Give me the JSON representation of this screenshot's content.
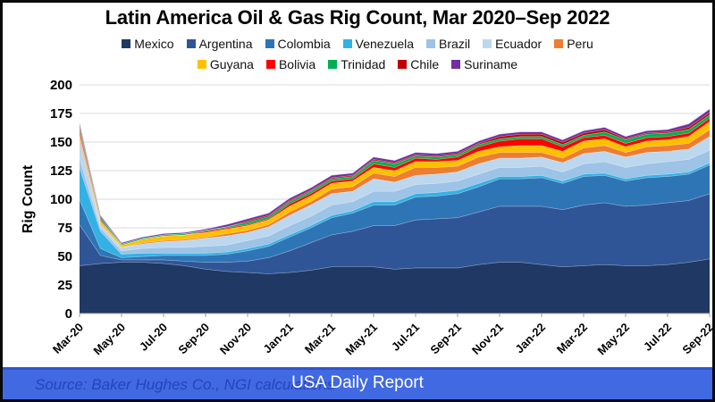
{
  "chart_data": {
    "type": "area",
    "stacked": true,
    "title": "Latin America Oil & Gas Rig Count, Mar 2020–Sep 2022",
    "ylabel": "Rig Count",
    "ylim": [
      0,
      200
    ],
    "ytick_step": 25,
    "grid": true,
    "legend_position": "top",
    "legend_row_break": 7,
    "x": [
      "Mar-20",
      "Apr-20",
      "May-20",
      "Jun-20",
      "Jul-20",
      "Aug-20",
      "Sep-20",
      "Oct-20",
      "Nov-20",
      "Dec-20",
      "Jan-21",
      "Feb-21",
      "Mar-21",
      "Apr-21",
      "May-21",
      "Jun-21",
      "Jul-21",
      "Aug-21",
      "Sep-21",
      "Oct-21",
      "Nov-21",
      "Dec-21",
      "Jan-22",
      "Feb-22",
      "Mar-22",
      "Apr-22",
      "May-22",
      "Jun-22",
      "Jul-22",
      "Aug-22",
      "Sep-22"
    ],
    "x_tick_every": 2,
    "series": [
      {
        "name": "Mexico",
        "color": "#1F3864",
        "values": [
          42,
          44,
          45,
          45,
          44,
          42,
          39,
          37,
          36,
          35,
          36,
          38,
          41,
          41,
          41,
          39,
          40,
          40,
          40,
          43,
          45,
          45,
          43,
          41,
          42,
          43,
          42,
          42,
          43,
          45,
          48
        ]
      },
      {
        "name": "Argentina",
        "color": "#2F5597",
        "values": [
          36,
          7,
          2,
          2,
          3,
          4,
          6,
          8,
          10,
          14,
          19,
          24,
          28,
          31,
          36,
          38,
          42,
          43,
          44,
          46,
          49,
          49,
          51,
          50,
          53,
          54,
          52,
          53,
          54,
          54,
          57
        ]
      },
      {
        "name": "Colombia",
        "color": "#2E75B6",
        "values": [
          22,
          6,
          2,
          3,
          4,
          5,
          6,
          7,
          9,
          10,
          12,
          13,
          15,
          16,
          18,
          18,
          20,
          20,
          21,
          22,
          24,
          24,
          25,
          23,
          25,
          24,
          22,
          24,
          23,
          23,
          25
        ]
      },
      {
        "name": "Venezuela",
        "color": "#33B1E5",
        "values": [
          28,
          15,
          3,
          3,
          2,
          2,
          2,
          2,
          2,
          2,
          2,
          2,
          2,
          2,
          3,
          3,
          3,
          3,
          3,
          3,
          2,
          2,
          2,
          2,
          2,
          2,
          2,
          2,
          2,
          2,
          2
        ]
      },
      {
        "name": "Brazil",
        "color": "#9DC3E6",
        "values": [
          8,
          3,
          3,
          4,
          5,
          5,
          6,
          6,
          7,
          7,
          8,
          8,
          9,
          8,
          9,
          9,
          8,
          8,
          8,
          8,
          8,
          8,
          8,
          8,
          9,
          10,
          10,
          10,
          11,
          11,
          11
        ]
      },
      {
        "name": "Ecuador",
        "color": "#BDD7EE",
        "values": [
          16,
          3,
          3,
          4,
          5,
          6,
          7,
          8,
          7,
          8,
          9,
          10,
          10,
          9,
          11,
          8,
          8,
          8,
          8,
          9,
          8,
          8,
          8,
          8,
          9,
          9,
          9,
          10,
          9,
          9,
          12
        ]
      },
      {
        "name": "Peru",
        "color": "#ED7D31",
        "values": [
          3,
          1,
          0,
          1,
          1,
          1,
          1,
          2,
          2,
          2,
          3,
          3,
          4,
          4,
          5,
          5,
          7,
          6,
          5,
          6,
          5,
          5,
          4,
          4,
          5,
          5,
          4,
          5,
          5,
          5,
          6
        ]
      },
      {
        "name": "Guyana",
        "color": "#FFC000",
        "values": [
          2,
          2,
          2,
          3,
          4,
          4,
          4,
          4,
          4,
          4,
          5,
          5,
          5,
          5,
          5,
          5,
          5,
          5,
          5,
          5,
          5,
          6,
          6,
          6,
          6,
          6,
          5,
          5,
          5,
          6,
          7
        ]
      },
      {
        "name": "Bolivia",
        "color": "#FF0000",
        "values": [
          3,
          1,
          0,
          0,
          0,
          0,
          1,
          1,
          1,
          1,
          2,
          2,
          2,
          2,
          3,
          3,
          3,
          2,
          3,
          4,
          5,
          6,
          6,
          4,
          3,
          3,
          3,
          3,
          3,
          3,
          3
        ]
      },
      {
        "name": "Trinidad",
        "color": "#00B050",
        "values": [
          3,
          2,
          1,
          1,
          1,
          1,
          1,
          1,
          2,
          2,
          2,
          2,
          2,
          2,
          3,
          3,
          2,
          2,
          2,
          2,
          2,
          2,
          2,
          2,
          2,
          3,
          3,
          3,
          3,
          3,
          3
        ]
      },
      {
        "name": "Chile",
        "color": "#C00000",
        "values": [
          2,
          1,
          0,
          0,
          0,
          0,
          0,
          0,
          1,
          1,
          1,
          1,
          1,
          1,
          1,
          1,
          1,
          1,
          1,
          1,
          2,
          2,
          2,
          2,
          2,
          2,
          1,
          1,
          1,
          2,
          2
        ]
      },
      {
        "name": "Suriname",
        "color": "#7030A0",
        "values": [
          2,
          1,
          1,
          1,
          1,
          1,
          1,
          2,
          2,
          2,
          2,
          2,
          2,
          2,
          2,
          2,
          2,
          2,
          2,
          2,
          2,
          2,
          2,
          2,
          2,
          2,
          2,
          2,
          2,
          3,
          3
        ]
      }
    ]
  },
  "footer": {
    "source_label": "Source: Baker Hughes Co., NGI calculations",
    "brand_label": "USA Daily Report",
    "bar_color": "#4169E1",
    "source_text_color": "#2340bb"
  },
  "style_colors": {
    "gridline": "#D9D9D9",
    "axis_line": "#BFBFBF",
    "tick_mark": "#9E9E9E",
    "text": "#000000"
  }
}
